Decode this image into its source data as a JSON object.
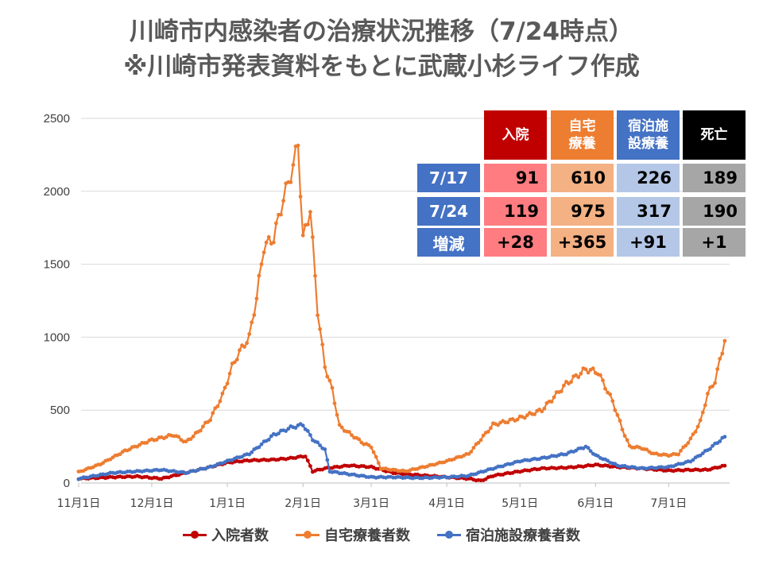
{
  "title": {
    "line1": "川崎市内感染者の治療状況推移（7/24時点）",
    "line2": "※川崎市発表資料をもとに武蔵小杉ライフ作成"
  },
  "table": {
    "headers": [
      "入院",
      "自宅\n療養",
      "宿泊施\n設療養",
      "死亡"
    ],
    "rows": [
      {
        "label": "7/17",
        "values": [
          "91",
          "610",
          "226",
          "189"
        ]
      },
      {
        "label": "7/24",
        "values": [
          "119",
          "975",
          "317",
          "190"
        ]
      },
      {
        "label": "増減",
        "values": [
          "+28",
          "+365",
          "+91",
          "+1"
        ]
      }
    ],
    "colors": {
      "headers": [
        "#c00000",
        "#ed7d31",
        "#4472c4",
        "#000000"
      ],
      "cells": [
        "#ff7c80",
        "#f4b183",
        "#b4c7e7",
        "#a6a6a6"
      ]
    }
  },
  "chart_data": {
    "type": "line",
    "x_ticks": [
      "11月1日",
      "12月1日",
      "1月1日",
      "2月1日",
      "3月1日",
      "4月1日",
      "5月1日",
      "6月1日",
      "7月1日"
    ],
    "ylim": [
      0,
      2500
    ],
    "y_ticks": [
      0,
      500,
      1000,
      1500,
      2000,
      2500
    ],
    "grid": "horizontal",
    "legend_position": "bottom",
    "series": [
      {
        "name": "入院者数",
        "color": "#c00000",
        "points": [
          [
            "11/1",
            30
          ],
          [
            "11/15",
            40
          ],
          [
            "11/25",
            45
          ],
          [
            "12/5",
            30
          ],
          [
            "12/15",
            70
          ],
          [
            "12/25",
            110
          ],
          [
            "1/1",
            140
          ],
          [
            "1/10",
            155
          ],
          [
            "1/20",
            160
          ],
          [
            "1/27",
            170
          ],
          [
            "2/2",
            185
          ],
          [
            "2/5",
            80
          ],
          [
            "2/10",
            100
          ],
          [
            "2/20",
            120
          ],
          [
            "3/1",
            110
          ],
          [
            "3/10",
            70
          ],
          [
            "3/20",
            55
          ],
          [
            "4/1",
            40
          ],
          [
            "4/10",
            30
          ],
          [
            "4/15",
            15
          ],
          [
            "4/20",
            50
          ],
          [
            "5/1",
            80
          ],
          [
            "5/10",
            100
          ],
          [
            "5/20",
            105
          ],
          [
            "5/27",
            115
          ],
          [
            "6/1",
            125
          ],
          [
            "6/10",
            110
          ],
          [
            "6/20",
            100
          ],
          [
            "7/1",
            85
          ],
          [
            "7/10",
            90
          ],
          [
            "7/17",
            91
          ],
          [
            "7/24",
            119
          ]
        ]
      },
      {
        "name": "自宅療養者数",
        "color": "#ed7d31",
        "points": [
          [
            "11/1",
            75
          ],
          [
            "11/10",
            130
          ],
          [
            "11/20",
            220
          ],
          [
            "11/30",
            290
          ],
          [
            "12/10",
            330
          ],
          [
            "12/15",
            280
          ],
          [
            "12/20",
            350
          ],
          [
            "12/25",
            440
          ],
          [
            "12/30",
            600
          ],
          [
            "1/3",
            800
          ],
          [
            "1/6",
            900
          ],
          [
            "1/10",
            1000
          ],
          [
            "1/13",
            1270
          ],
          [
            "1/16",
            1620
          ],
          [
            "1/20",
            1680
          ],
          [
            "1/24",
            1950
          ],
          [
            "1/28",
            2170
          ],
          [
            "1/30",
            2340
          ],
          [
            "2/1",
            1670
          ],
          [
            "2/4",
            1880
          ],
          [
            "2/7",
            1180
          ],
          [
            "2/10",
            800
          ],
          [
            "2/13",
            640
          ],
          [
            "2/16",
            390
          ],
          [
            "2/21",
            330
          ],
          [
            "2/26",
            270
          ],
          [
            "3/1",
            250
          ],
          [
            "3/5",
            100
          ],
          [
            "3/10",
            90
          ],
          [
            "3/15",
            80
          ],
          [
            "3/20",
            100
          ],
          [
            "3/25",
            120
          ],
          [
            "4/1",
            150
          ],
          [
            "4/10",
            200
          ],
          [
            "4/20",
            400
          ],
          [
            "4/30",
            440
          ],
          [
            "5/10",
            500
          ],
          [
            "5/20",
            680
          ],
          [
            "5/28",
            780
          ],
          [
            "6/2",
            760
          ],
          [
            "6/8",
            560
          ],
          [
            "6/12",
            370
          ],
          [
            "6/15",
            250
          ],
          [
            "6/20",
            240
          ],
          [
            "6/25",
            200
          ],
          [
            "7/1",
            190
          ],
          [
            "7/5",
            200
          ],
          [
            "7/10",
            300
          ],
          [
            "7/14",
            420
          ],
          [
            "7/17",
            610
          ],
          [
            "7/20",
            700
          ],
          [
            "7/24",
            975
          ]
        ]
      },
      {
        "name": "宿泊施設療養者数",
        "color": "#4472c4",
        "points": [
          [
            "11/1",
            30
          ],
          [
            "11/15",
            70
          ],
          [
            "11/25",
            80
          ],
          [
            "12/5",
            90
          ],
          [
            "12/15",
            70
          ],
          [
            "12/25",
            110
          ],
          [
            "1/1",
            150
          ],
          [
            "1/10",
            200
          ],
          [
            "1/20",
            330
          ],
          [
            "1/27",
            380
          ],
          [
            "2/1",
            400
          ],
          [
            "2/5",
            300
          ],
          [
            "2/10",
            230
          ],
          [
            "2/12",
            80
          ],
          [
            "2/20",
            60
          ],
          [
            "3/1",
            40
          ],
          [
            "3/10",
            40
          ],
          [
            "3/20",
            35
          ],
          [
            "4/1",
            40
          ],
          [
            "4/10",
            50
          ],
          [
            "4/20",
            100
          ],
          [
            "5/1",
            150
          ],
          [
            "5/10",
            170
          ],
          [
            "5/20",
            200
          ],
          [
            "5/28",
            250
          ],
          [
            "6/1",
            190
          ],
          [
            "6/10",
            120
          ],
          [
            "6/20",
            100
          ],
          [
            "7/1",
            110
          ],
          [
            "7/10",
            150
          ],
          [
            "7/17",
            226
          ],
          [
            "7/24",
            317
          ]
        ]
      }
    ]
  }
}
